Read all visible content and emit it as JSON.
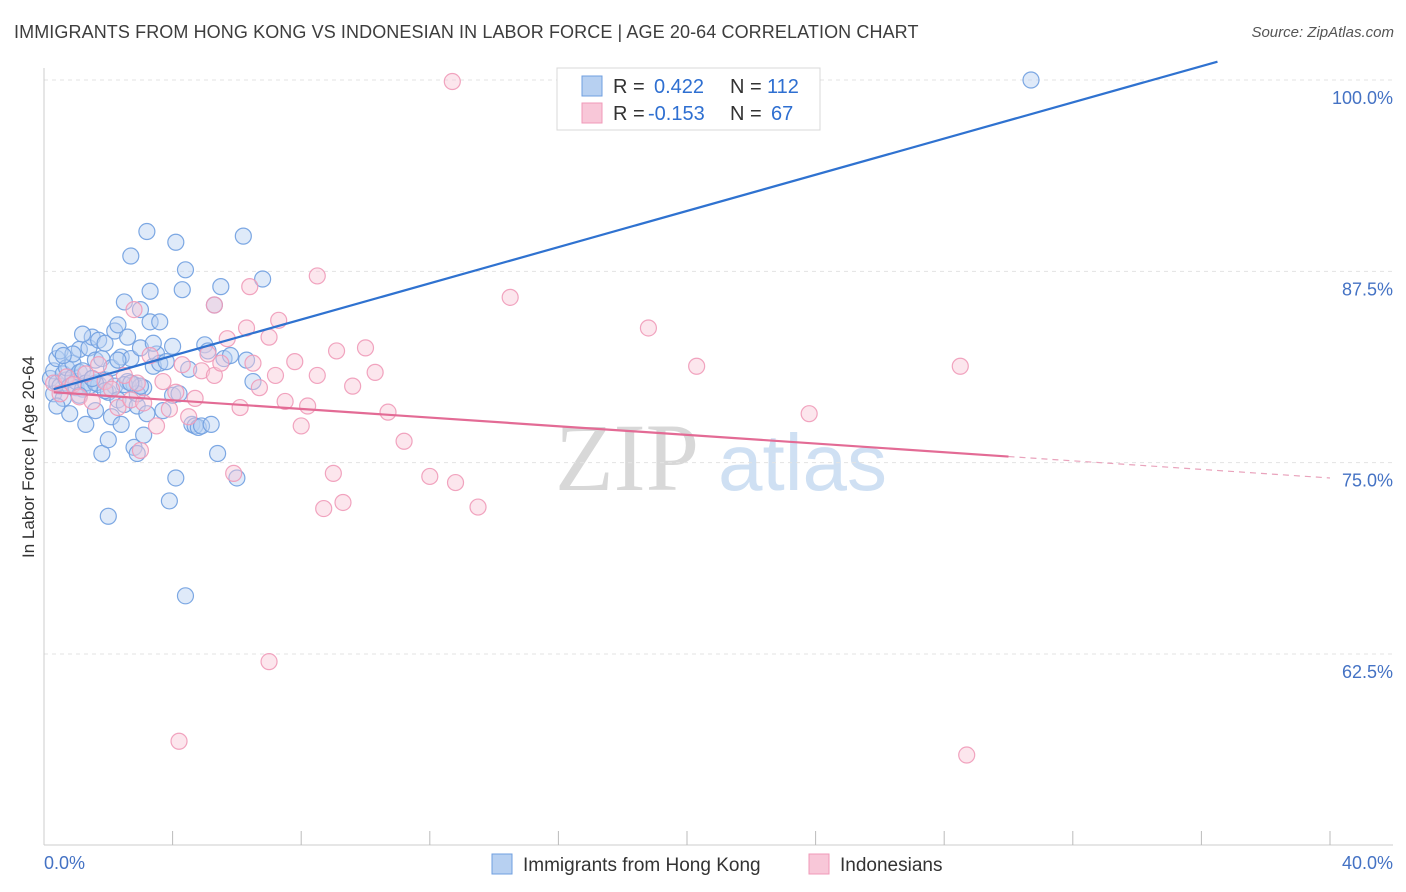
{
  "title": "IMMIGRANTS FROM HONG KONG VS INDONESIAN IN LABOR FORCE | AGE 20-64 CORRELATION CHART",
  "source": "Source: ZipAtlas.com",
  "watermark": {
    "zip": "ZIP",
    "atlas": "atlas"
  },
  "chart_data": {
    "type": "scatter",
    "title": "IMMIGRANTS FROM HONG KONG VS INDONESIAN IN LABOR FORCE | AGE 20-64 CORRELATION CHART",
    "xlabel": "",
    "ylabel": "In Labor Force | Age 20-64",
    "xlim": [
      0,
      40
    ],
    "ylim": [
      50,
      101
    ],
    "x_tick_labels": [
      "0.0%",
      "40.0%"
    ],
    "y_ticks": [
      62.5,
      75.0,
      87.5,
      100.0
    ],
    "y_tick_labels": [
      "62.5%",
      "75.0%",
      "87.5%",
      "100.0%"
    ],
    "grid": true,
    "legend": {
      "placement": "top-center",
      "entries": [
        {
          "r_label": "R =",
          "r": "0.422",
          "n_label": "N =",
          "n": "112",
          "color": "#6f9fe0"
        },
        {
          "r_label": "R =",
          "r": "-0.153",
          "n_label": "N =",
          "n": "67",
          "color": "#f09ab8"
        }
      ]
    },
    "series": [
      {
        "name": "Immigrants from Hong Kong",
        "color": "#6f9fe0",
        "fill": "#b7d0f1",
        "trend": {
          "x": [
            0.3,
            36.5
          ],
          "y": [
            79.8,
            101.2
          ],
          "color": "#2f72d0"
        },
        "points": [
          [
            0.2,
            80.5
          ],
          [
            0.3,
            81.0
          ],
          [
            0.3,
            79.5
          ],
          [
            0.4,
            80.2
          ],
          [
            0.4,
            81.8
          ],
          [
            0.5,
            80.0
          ],
          [
            0.5,
            82.3
          ],
          [
            0.6,
            80.8
          ],
          [
            0.6,
            79.2
          ],
          [
            0.7,
            80.4
          ],
          [
            0.7,
            81.2
          ],
          [
            0.8,
            80.0
          ],
          [
            0.8,
            78.2
          ],
          [
            0.9,
            80.6
          ],
          [
            0.9,
            81.5
          ],
          [
            1.0,
            79.9
          ],
          [
            1.0,
            80.3
          ],
          [
            1.1,
            82.4
          ],
          [
            1.1,
            80.9
          ],
          [
            1.2,
            79.8
          ],
          [
            1.2,
            81.0
          ],
          [
            1.3,
            80.2
          ],
          [
            1.3,
            77.5
          ],
          [
            1.4,
            82.5
          ],
          [
            1.4,
            80.0
          ],
          [
            1.5,
            83.2
          ],
          [
            1.5,
            80.5
          ],
          [
            1.6,
            81.7
          ],
          [
            1.6,
            78.4
          ],
          [
            1.7,
            80.1
          ],
          [
            1.7,
            83.0
          ],
          [
            1.8,
            81.8
          ],
          [
            1.8,
            75.6
          ],
          [
            1.9,
            80.4
          ],
          [
            1.9,
            82.8
          ],
          [
            2.0,
            79.6
          ],
          [
            2.0,
            76.5
          ],
          [
            2.1,
            81.2
          ],
          [
            2.1,
            78.0
          ],
          [
            2.2,
            83.6
          ],
          [
            2.2,
            80.0
          ],
          [
            2.3,
            79.1
          ],
          [
            2.3,
            84.0
          ],
          [
            2.4,
            81.9
          ],
          [
            2.4,
            77.5
          ],
          [
            2.5,
            85.5
          ],
          [
            2.5,
            78.8
          ],
          [
            2.6,
            80.3
          ],
          [
            2.6,
            83.2
          ],
          [
            2.7,
            88.5
          ],
          [
            2.7,
            81.8
          ],
          [
            2.8,
            76.0
          ],
          [
            2.8,
            80.1
          ],
          [
            2.9,
            78.7
          ],
          [
            2.9,
            75.6
          ],
          [
            3.0,
            82.5
          ],
          [
            3.0,
            85.0
          ],
          [
            3.1,
            76.8
          ],
          [
            3.1,
            79.9
          ],
          [
            3.2,
            78.2
          ],
          [
            3.2,
            90.1
          ],
          [
            3.3,
            86.2
          ],
          [
            3.3,
            84.2
          ],
          [
            3.4,
            81.3
          ],
          [
            3.5,
            82.1
          ],
          [
            3.6,
            84.2
          ],
          [
            3.6,
            81.5
          ],
          [
            3.7,
            78.4
          ],
          [
            3.8,
            81.6
          ],
          [
            3.9,
            72.5
          ],
          [
            4.0,
            79.4
          ],
          [
            4.0,
            82.6
          ],
          [
            4.1,
            89.4
          ],
          [
            4.1,
            74.0
          ],
          [
            4.2,
            79.5
          ],
          [
            4.3,
            86.3
          ],
          [
            4.4,
            87.6
          ],
          [
            4.5,
            81.1
          ],
          [
            4.6,
            77.5
          ],
          [
            4.7,
            77.4
          ],
          [
            4.8,
            77.3
          ],
          [
            4.9,
            77.4
          ],
          [
            5.0,
            82.7
          ],
          [
            5.1,
            82.3
          ],
          [
            5.2,
            77.5
          ],
          [
            5.3,
            85.3
          ],
          [
            5.4,
            75.6
          ],
          [
            5.5,
            86.5
          ],
          [
            5.6,
            81.8
          ],
          [
            5.8,
            82.0
          ],
          [
            6.0,
            74.0
          ],
          [
            6.2,
            89.8
          ],
          [
            6.3,
            81.7
          ],
          [
            6.5,
            80.3
          ],
          [
            6.8,
            87.0
          ],
          [
            2.0,
            71.5
          ],
          [
            4.4,
            66.3
          ],
          [
            30.7,
            100.0
          ],
          [
            0.4,
            78.7
          ],
          [
            1.2,
            83.4
          ],
          [
            2.5,
            80.1
          ],
          [
            3.4,
            82.8
          ],
          [
            1.6,
            80.2
          ],
          [
            0.9,
            82.1
          ],
          [
            2.9,
            79.5
          ],
          [
            1.1,
            79.4
          ],
          [
            1.5,
            80.5
          ],
          [
            3.0,
            80.0
          ],
          [
            2.3,
            81.7
          ],
          [
            0.6,
            82.0
          ],
          [
            1.9,
            79.7
          ],
          [
            2.7,
            80.2
          ]
        ]
      },
      {
        "name": "Indonesians",
        "color": "#f09ab8",
        "fill": "#f8c7d8",
        "trend": {
          "x": [
            0.3,
            30.0
          ],
          "y": [
            79.6,
            75.4
          ],
          "color": "#e36b95"
        },
        "trend_dashed": {
          "x": [
            30.0,
            40.0
          ],
          "y": [
            75.4,
            74.0
          ],
          "color": "#e9a3bc"
        },
        "points": [
          [
            0.3,
            80.2
          ],
          [
            0.5,
            79.5
          ],
          [
            0.7,
            80.6
          ],
          [
            0.9,
            80.1
          ],
          [
            1.1,
            79.3
          ],
          [
            1.3,
            80.8
          ],
          [
            1.5,
            79.0
          ],
          [
            1.7,
            81.4
          ],
          [
            1.9,
            80.3
          ],
          [
            2.1,
            79.8
          ],
          [
            2.3,
            78.6
          ],
          [
            2.5,
            80.7
          ],
          [
            2.7,
            79.1
          ],
          [
            2.9,
            80.2
          ],
          [
            3.1,
            78.9
          ],
          [
            3.3,
            82.0
          ],
          [
            3.5,
            77.4
          ],
          [
            3.7,
            80.3
          ],
          [
            3.9,
            78.5
          ],
          [
            4.1,
            79.6
          ],
          [
            4.3,
            81.4
          ],
          [
            4.5,
            78.0
          ],
          [
            4.7,
            79.2
          ],
          [
            4.9,
            81.0
          ],
          [
            5.1,
            82.1
          ],
          [
            5.3,
            80.7
          ],
          [
            5.5,
            81.5
          ],
          [
            5.7,
            83.1
          ],
          [
            5.9,
            74.3
          ],
          [
            6.1,
            78.6
          ],
          [
            6.3,
            83.8
          ],
          [
            6.5,
            81.5
          ],
          [
            6.7,
            79.9
          ],
          [
            7.0,
            83.2
          ],
          [
            7.2,
            80.7
          ],
          [
            7.5,
            79.0
          ],
          [
            7.8,
            81.6
          ],
          [
            8.0,
            77.4
          ],
          [
            8.2,
            78.7
          ],
          [
            8.5,
            80.7
          ],
          [
            8.7,
            72.0
          ],
          [
            9.0,
            74.3
          ],
          [
            9.3,
            72.4
          ],
          [
            9.6,
            80.0
          ],
          [
            10.0,
            82.5
          ],
          [
            10.3,
            80.9
          ],
          [
            10.7,
            78.3
          ],
          [
            11.2,
            76.4
          ],
          [
            12.0,
            74.1
          ],
          [
            12.8,
            73.7
          ],
          [
            13.5,
            72.1
          ],
          [
            14.5,
            85.8
          ],
          [
            18.8,
            83.8
          ],
          [
            20.3,
            81.3
          ],
          [
            23.8,
            78.2
          ],
          [
            28.5,
            81.3
          ],
          [
            12.7,
            99.9
          ],
          [
            8.5,
            87.2
          ],
          [
            5.3,
            85.3
          ],
          [
            2.8,
            85.0
          ],
          [
            4.2,
            56.8
          ],
          [
            7.0,
            62.0
          ],
          [
            28.7,
            55.9
          ],
          [
            3.0,
            75.8
          ],
          [
            6.4,
            86.5
          ],
          [
            7.3,
            84.3
          ],
          [
            9.1,
            82.3
          ]
        ]
      }
    ]
  }
}
